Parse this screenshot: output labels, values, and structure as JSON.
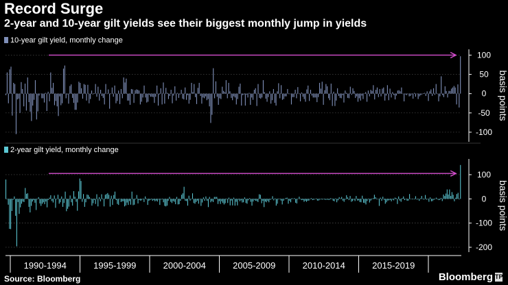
{
  "header": {
    "title": "Record Surge",
    "subtitle": "2-year and 10-year gilt yields see their biggest monthly jump in yields"
  },
  "footer": {
    "source": "Source: Bloomberg",
    "brand": "Bloomberg",
    "brand_mark": "TP"
  },
  "colors": {
    "background": "#000000",
    "series_10y": "#7f8fb8",
    "series_2y": "#5cc8d4",
    "arrow": "#d64fd0",
    "grid": "#555555",
    "axis_text": "#ffffff"
  },
  "icons": {
    "arrow": "arrow-right-icon",
    "brand_mark": "bloomberg-terminal-icon"
  },
  "chart_data": [
    {
      "type": "bar",
      "series_name": "10-year gilt  yield, monthly change",
      "ylabel": "basis points",
      "yticks": [
        100,
        50,
        0,
        -50,
        -100
      ],
      "ylim": [
        -125,
        115
      ],
      "unit": "basis points",
      "annotation": {
        "type": "arrow",
        "target": "last-bar",
        "level": 100
      },
      "values": [
        -4,
        55,
        -25,
        63,
        70,
        -57,
        28,
        25,
        -105,
        -15,
        -13,
        -50,
        30,
        12,
        -33,
        26,
        -44,
        42,
        -22,
        -47,
        -71,
        -31,
        -16,
        35,
        -67,
        -46,
        -5,
        -1,
        -12,
        -12,
        -23,
        2,
        -45,
        5,
        -20,
        55,
        15,
        28,
        -30,
        -19,
        -33,
        -58,
        -7,
        -30,
        -25,
        65,
        73,
        -12,
        -2,
        -26,
        20,
        24,
        -11,
        -24,
        -42,
        -42,
        -23,
        31,
        28,
        14,
        -13,
        25,
        23,
        -18,
        23,
        -25,
        -14,
        8,
        -2,
        1,
        25,
        -8,
        18,
        -18,
        10,
        -6,
        -11,
        -28,
        25,
        0,
        11,
        -39,
        -1,
        16,
        -8,
        21,
        -25,
        -19,
        8,
        -27,
        12,
        -12,
        42,
        29,
        39,
        -18,
        -18,
        -29,
        12,
        11,
        -24,
        9,
        11,
        10,
        8,
        -28,
        -21,
        -10,
        21,
        -10,
        -23,
        -21,
        -3,
        -8,
        -8,
        -9,
        -24,
        -8,
        21,
        -31,
        -2,
        14,
        -28,
        29,
        -26,
        15,
        2,
        -14,
        -6,
        10,
        -25,
        -5,
        19,
        -18,
        2,
        -11,
        -2,
        10,
        -13,
        -15,
        16,
        -16,
        -4,
        -26,
        -16,
        28,
        4,
        25,
        -9,
        -27,
        15,
        28,
        -6,
        -26,
        -10,
        -12,
        -7,
        -17,
        -14,
        -33,
        -76,
        -55,
        66,
        -12,
        32,
        -8,
        -29,
        -12,
        -14,
        18,
        7,
        4,
        35,
        -12,
        28,
        6,
        -11,
        -17,
        -7,
        -10,
        -28,
        -14,
        18,
        26,
        -31,
        -4,
        -2,
        -31,
        -3,
        -10,
        2,
        -29,
        -10,
        -16,
        10,
        14,
        -32,
        25,
        -11,
        -13,
        -10,
        35,
        4,
        -13,
        -21,
        -9,
        6,
        -26,
        -17,
        12,
        -24,
        -31,
        6,
        27,
        -12,
        22,
        -16,
        -14,
        -7,
        -7,
        12,
        0,
        -1,
        -28,
        -9,
        -9,
        10,
        -12,
        17,
        -1,
        -20,
        3,
        -8,
        -14,
        -21,
        11,
        21,
        -19,
        10,
        -5,
        -10,
        -10,
        -10,
        -22,
        -9,
        28,
        13,
        31,
        -29,
        9,
        25,
        19,
        -12,
        -17,
        26,
        -32,
        5,
        -32,
        -18,
        14,
        -6,
        -11,
        -12,
        -4,
        -23,
        8,
        2,
        -11,
        -12,
        18,
        -3,
        14,
        7,
        -11,
        -7,
        -21,
        -12,
        -18,
        -5,
        -14,
        1,
        4,
        -21,
        8,
        -7,
        10,
        7,
        22,
        -15,
        10,
        16,
        -9,
        12,
        -7,
        13,
        16,
        -18,
        -5,
        22,
        -17,
        13,
        -10,
        4,
        -4,
        -15,
        -5,
        8,
        9,
        6,
        16,
        0,
        -20,
        -2,
        -4,
        -1,
        -7,
        -6,
        -2,
        -13,
        2,
        -8,
        0,
        -14,
        -7,
        -4,
        -2,
        1,
        2,
        -6,
        6,
        -19,
        6,
        11,
        -6,
        14,
        -3,
        25,
        -1,
        -20,
        -7,
        45,
        -4,
        -9,
        19,
        7,
        -10,
        7,
        7,
        13,
        16,
        20,
        16,
        -28,
        24,
        -36,
        97
      ]
    },
    {
      "type": "bar",
      "series_name": "2-year gilt yield, monthly change",
      "ylabel": "basis points",
      "yticks": [
        100,
        0,
        -100,
        -200
      ],
      "ylim": [
        -220,
        165
      ],
      "unit": "basis points",
      "annotation": {
        "type": "arrow",
        "target": "last-bar",
        "level": 105
      },
      "x_tick_labels": [
        "1990-1994",
        "1995-1999",
        "2000-2004",
        "2005-2009",
        "2010-2014",
        "2015-2019"
      ],
      "values": [
        80,
        -1,
        -24,
        -124,
        -125,
        -50,
        -4,
        10,
        -70,
        -196,
        -13,
        -62,
        -35,
        -20,
        -11,
        -13,
        45,
        21,
        23,
        -33,
        -56,
        -29,
        -11,
        -5,
        -16,
        -46,
        -2,
        7,
        -19,
        -29,
        -20,
        -14,
        -22,
        -11,
        -35,
        -5,
        5,
        15,
        -9,
        -15,
        14,
        -37,
        -2,
        17,
        -20,
        -14,
        10,
        -33,
        -17,
        30,
        -51,
        -41,
        -32,
        14,
        -14,
        -28,
        32,
        9,
        -12,
        -49,
        31,
        84,
        74,
        -12,
        20,
        -33,
        -14,
        18,
        16,
        8,
        -2,
        -28,
        -18,
        -4,
        -21,
        19,
        -31,
        7,
        -10,
        19,
        -2,
        -31,
        17,
        20,
        24,
        17,
        -32,
        13,
        -25,
        16,
        30,
        -5,
        -21,
        -25,
        1,
        -13,
        -10,
        -10,
        -31,
        -27,
        -15,
        -25,
        -9,
        -24,
        30,
        -26,
        -24,
        -1,
        16,
        -19,
        -5,
        -7,
        -6,
        -1,
        -13,
        10,
        1,
        -25,
        -8,
        -5,
        0,
        -8,
        -5,
        -10,
        -7,
        -11,
        -3,
        -25,
        -3,
        -1,
        -14,
        -29,
        -31,
        -28,
        -8,
        8,
        -12,
        -17,
        -9,
        -12,
        -22,
        8,
        -23,
        -22,
        -8,
        17,
        23,
        50,
        -8,
        -9,
        -28,
        13,
        -7,
        -2,
        23,
        -17,
        -20,
        -13,
        -7,
        -20,
        -1,
        -29,
        -15,
        6,
        -8,
        10,
        -8,
        -34,
        8,
        -14,
        -9,
        -13,
        8,
        8,
        8,
        -21,
        -9,
        -21,
        -10,
        -17,
        -23,
        -18,
        -2,
        -17,
        5,
        -27,
        -7,
        -27,
        5,
        -28,
        -12,
        -27,
        -3,
        -10,
        -6,
        -15,
        -14,
        6,
        -17,
        -20,
        -6,
        3,
        -12,
        -28,
        -11,
        -4,
        -8,
        -9,
        -13,
        19,
        17,
        -18,
        -8,
        -34,
        -11,
        -14,
        -8,
        -14,
        -4,
        0,
        11,
        -6,
        2,
        -28,
        -20,
        -2,
        1,
        -7,
        -23,
        -8,
        -1,
        4,
        5,
        -20,
        -8,
        -14,
        3,
        1,
        3,
        -16,
        -19,
        1,
        9,
        0,
        -5,
        -5,
        -12,
        -8,
        -12,
        -8,
        -7,
        -1,
        3,
        -5,
        -4,
        -1,
        2,
        -7,
        -7,
        -3,
        -2,
        -3,
        -2,
        -3,
        -4,
        -3,
        -4,
        -4,
        3,
        1,
        -8,
        -10,
        2,
        -14,
        -6,
        7,
        2,
        8,
        -7,
        -12,
        -3,
        15,
        6,
        -5,
        12,
        -12,
        -9,
        -3,
        -9,
        12,
        -7,
        -6,
        -13,
        -14,
        13,
        -16,
        -17,
        -23,
        -9,
        1,
        -15,
        -7,
        -2,
        3,
        17,
        7,
        -1,
        -1,
        -29,
        5,
        -8,
        9,
        -4,
        -20,
        -14,
        -7,
        -6,
        -4,
        -10,
        -3,
        -6,
        5,
        3,
        -21,
        10,
        -7,
        -12,
        3,
        10,
        -5,
        -2,
        -8,
        -7,
        20,
        1,
        -1,
        -1,
        -2,
        11,
        -3,
        -1,
        -8,
        2,
        12,
        1,
        -3,
        16,
        -3,
        -2,
        -12,
        6,
        -10,
        -9,
        -4,
        -1,
        5,
        -1,
        -5,
        -4,
        4,
        -9,
        18,
        12,
        22,
        39,
        18,
        39,
        12,
        28,
        17,
        -10,
        5,
        20,
        25,
        -2,
        140
      ]
    }
  ]
}
